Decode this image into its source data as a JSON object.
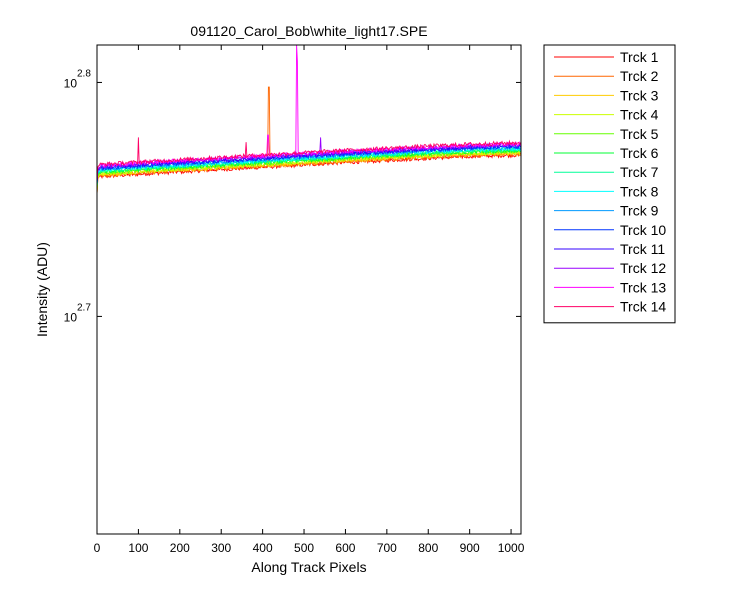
{
  "chart_data": {
    "type": "line",
    "title": "091120_Carol_Bob\\white_light17.SPE",
    "xlabel": "Along Track Pixels",
    "ylabel": "Intensity (ADU)",
    "xlim": [
      0,
      1024
    ],
    "ylim_log10": [
      2.607,
      2.816
    ],
    "yscale": "log",
    "grid": false,
    "legend_position": "outside-top-right",
    "x_ticks": [
      0,
      100,
      200,
      300,
      400,
      500,
      600,
      700,
      800,
      900,
      1000
    ],
    "y_ticks": [
      {
        "base": "10",
        "exp": "2.7",
        "log10": 2.7
      },
      {
        "base": "10",
        "exp": "2.8",
        "log10": 2.8
      }
    ],
    "x_trend_points": [
      0,
      1,
      2,
      5,
      10,
      50,
      100,
      200,
      300,
      400,
      500,
      600,
      700,
      800,
      900,
      1024
    ],
    "series": [
      {
        "name": "Trck 1",
        "color": "#ff0000",
        "log10_trend": [
          2.752,
          2.758,
          2.759,
          2.7595,
          2.7598,
          2.7602,
          2.7608,
          2.7618,
          2.7628,
          2.7638,
          2.7648,
          2.7658,
          2.7667,
          2.7676,
          2.7684,
          2.769
        ]
      },
      {
        "name": "Trck 2",
        "color": "#ff6600",
        "log10_trend": [
          2.752,
          2.758,
          2.7594,
          2.7599,
          2.7602,
          2.7606,
          2.7612,
          2.7622,
          2.7632,
          2.7642,
          2.7652,
          2.7662,
          2.7671,
          2.768,
          2.7688,
          2.7694
        ]
      },
      {
        "name": "Trck 3",
        "color": "#ffcc00",
        "log10_trend": [
          2.753,
          2.759,
          2.7598,
          2.7603,
          2.7606,
          2.761,
          2.7616,
          2.7626,
          2.7636,
          2.7646,
          2.7656,
          2.7666,
          2.7675,
          2.7684,
          2.7692,
          2.7698
        ]
      },
      {
        "name": "Trck 4",
        "color": "#ccff00",
        "log10_trend": [
          2.753,
          2.759,
          2.7602,
          2.7607,
          2.761,
          2.7614,
          2.762,
          2.763,
          2.764,
          2.765,
          2.766,
          2.767,
          2.7679,
          2.7688,
          2.7696,
          2.7702
        ]
      },
      {
        "name": "Trck 5",
        "color": "#66ff00",
        "log10_trend": [
          2.754,
          2.76,
          2.7606,
          2.7611,
          2.7614,
          2.7618,
          2.7624,
          2.7634,
          2.7644,
          2.7654,
          2.7664,
          2.7674,
          2.7683,
          2.7692,
          2.77,
          2.7706
        ]
      },
      {
        "name": "Trck 6",
        "color": "#00ff33",
        "log10_trend": [
          2.754,
          2.76,
          2.761,
          2.7615,
          2.7618,
          2.7622,
          2.7628,
          2.7638,
          2.7648,
          2.7658,
          2.7668,
          2.7678,
          2.7687,
          2.7696,
          2.7704,
          2.771
        ]
      },
      {
        "name": "Trck 7",
        "color": "#00ff99",
        "log10_trend": [
          2.755,
          2.761,
          2.7614,
          2.7619,
          2.7622,
          2.7626,
          2.7632,
          2.7642,
          2.7652,
          2.7662,
          2.7672,
          2.7682,
          2.7691,
          2.77,
          2.7708,
          2.7714
        ]
      },
      {
        "name": "Trck 8",
        "color": "#00ffff",
        "log10_trend": [
          2.755,
          2.761,
          2.7618,
          2.7623,
          2.7626,
          2.763,
          2.7636,
          2.7646,
          2.7656,
          2.7666,
          2.7676,
          2.7686,
          2.7695,
          2.7704,
          2.7712,
          2.7718
        ]
      },
      {
        "name": "Trck 9",
        "color": "#0099ff",
        "log10_trend": [
          2.756,
          2.762,
          2.7622,
          2.7627,
          2.763,
          2.7634,
          2.764,
          2.765,
          2.766,
          2.767,
          2.768,
          2.769,
          2.7699,
          2.7708,
          2.7716,
          2.7722
        ]
      },
      {
        "name": "Trck 10",
        "color": "#0033ff",
        "log10_trend": [
          2.756,
          2.762,
          2.7626,
          2.7631,
          2.7634,
          2.7638,
          2.7644,
          2.7654,
          2.7664,
          2.7674,
          2.7684,
          2.7694,
          2.7703,
          2.7712,
          2.772,
          2.7726
        ]
      },
      {
        "name": "Trck 11",
        "color": "#3300ff",
        "log10_trend": [
          2.757,
          2.763,
          2.763,
          2.7635,
          2.7638,
          2.7642,
          2.7648,
          2.7658,
          2.7668,
          2.7678,
          2.7688,
          2.7698,
          2.7707,
          2.7716,
          2.7724,
          2.773
        ]
      },
      {
        "name": "Trck 12",
        "color": "#9900ff",
        "log10_trend": [
          2.757,
          2.763,
          2.7634,
          2.7639,
          2.7642,
          2.7646,
          2.7652,
          2.7662,
          2.7672,
          2.7682,
          2.7692,
          2.7702,
          2.7711,
          2.772,
          2.7728,
          2.7734
        ]
      },
      {
        "name": "Trck 13",
        "color": "#ff00ff",
        "log10_trend": [
          2.758,
          2.764,
          2.7638,
          2.7643,
          2.7646,
          2.765,
          2.7656,
          2.7666,
          2.7676,
          2.7686,
          2.7696,
          2.7706,
          2.7715,
          2.7724,
          2.7732,
          2.7738
        ]
      },
      {
        "name": "Trck 14",
        "color": "#ff0066",
        "log10_trend": [
          2.758,
          2.764,
          2.7642,
          2.7647,
          2.765,
          2.7654,
          2.766,
          2.767,
          2.768,
          2.769,
          2.77,
          2.771,
          2.7719,
          2.7728,
          2.7736,
          2.7742
        ]
      }
    ],
    "spikes": [
      {
        "series": "Trck 13",
        "x": 482,
        "log10": 2.816
      },
      {
        "series": "Trck 13",
        "x": 484,
        "log10": 2.809
      },
      {
        "series": "Trck 2",
        "x": 415,
        "log10": 2.798
      },
      {
        "series": "Trck 14",
        "x": 100,
        "log10": 2.7765
      },
      {
        "series": "Trck 13",
        "x": 413,
        "log10": 2.7775
      },
      {
        "series": "Trck 12",
        "x": 540,
        "log10": 2.7765
      },
      {
        "series": "Trck 14",
        "x": 360,
        "log10": 2.7745
      }
    ]
  }
}
